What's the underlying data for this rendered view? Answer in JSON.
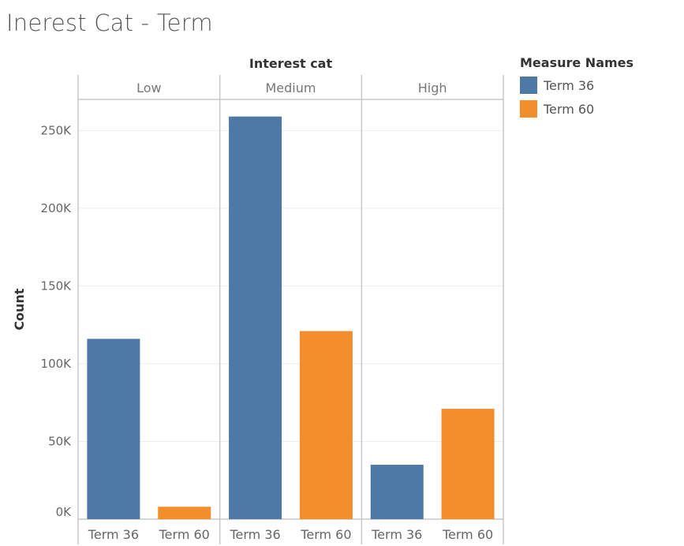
{
  "title": "Inerest Cat - Term",
  "legend": {
    "title": "Measure Names",
    "items": [
      {
        "label": "Term 36",
        "color": "#4e79a7"
      },
      {
        "label": "Term 60",
        "color": "#f28e2b"
      }
    ]
  },
  "chart_data": {
    "type": "bar",
    "header": "Interest cat",
    "ylabel": "Count",
    "ylim": [
      0,
      270000
    ],
    "yticks": [
      0,
      50000,
      100000,
      150000,
      200000,
      250000
    ],
    "ytick_labels": [
      "0K",
      "50K",
      "100K",
      "150K",
      "200K",
      "250K"
    ],
    "grid": true,
    "legend_position": "top-right",
    "panels": [
      {
        "name": "Low",
        "categories": [
          "Term 36",
          "Term 60"
        ],
        "values": [
          116000,
          8000
        ]
      },
      {
        "name": "Medium",
        "categories": [
          "Term 36",
          "Term 60"
        ],
        "values": [
          259000,
          121000
        ]
      },
      {
        "name": "High",
        "categories": [
          "Term 36",
          "Term 60"
        ],
        "values": [
          35000,
          71000
        ]
      }
    ],
    "colors": {
      "Term 36": "#4e79a7",
      "Term 60": "#f28e2b"
    }
  }
}
